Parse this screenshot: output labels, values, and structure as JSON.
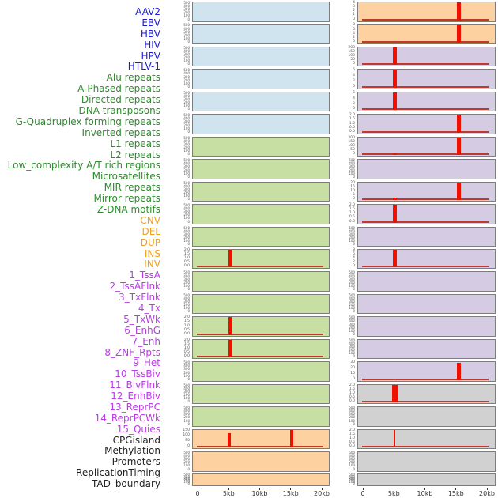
{
  "figure_title": "genomic feature tracks around region (0-20kb), two-column track grid",
  "colors": {
    "label": {
      "virus": "#1a1ad1",
      "repeat": "#2e8b2e",
      "sv": "#f0a01e",
      "chromhmm": "#b93ce6",
      "other": "#222222"
    },
    "panel_bg": {
      "virus": "#cfe4ee",
      "repeat": "#c8dfa4",
      "sv": "#fdd2a0",
      "chromhmm": "#d5cbe2",
      "other": "#d1d1d1"
    },
    "spike": "#ee1100",
    "baseline": "#c0392b",
    "panel_border": "#7d7d7d",
    "tick_text": "#555555",
    "axis_text": "#333333"
  },
  "axis": {
    "xticks": [
      "0",
      "5kb",
      "10kb",
      "15kb",
      "20kb"
    ],
    "xtick_kb": [
      0,
      5,
      10,
      15,
      20
    ]
  },
  "chart_data": {
    "type": "area",
    "layout": "44 named tracks listed down the left margin; panels drawn in two columns of 22 rows (tracks 1-22 left column top-to-bottom, tracks 23-44 right column); each panel is a 0-20kb signal strip with red peak spikes over a flat red baseline",
    "x": {
      "ticks": [
        "0",
        "5kb",
        "10kb",
        "15kb",
        "20kb"
      ],
      "range_kb": [
        0,
        20
      ]
    },
    "tracks": [
      {
        "name": "AAV2",
        "group": "virus",
        "yticks": [
          "500",
          "400",
          "300",
          "200",
          "100",
          "0"
        ],
        "peaks": [],
        "baseline": false
      },
      {
        "name": "EBV",
        "group": "virus",
        "yticks": [
          "500",
          "400",
          "300",
          "200",
          "100",
          "0"
        ],
        "peaks": [],
        "baseline": false
      },
      {
        "name": "HBV",
        "group": "virus",
        "yticks": [
          "500",
          "400",
          "300",
          "200",
          "100",
          "0"
        ],
        "peaks": [],
        "baseline": false
      },
      {
        "name": "HIV",
        "group": "virus",
        "yticks": [
          "500",
          "400",
          "300",
          "200",
          "100",
          "0"
        ],
        "peaks": [],
        "baseline": false
      },
      {
        "name": "HPV",
        "group": "virus",
        "yticks": [
          "500",
          "400",
          "300",
          "200",
          "100",
          "0"
        ],
        "peaks": [],
        "baseline": false
      },
      {
        "name": "HTLV-1",
        "group": "virus",
        "yticks": [
          "500",
          "400",
          "300",
          "200",
          "100",
          "0"
        ],
        "peaks": [],
        "baseline": false
      },
      {
        "name": "Alu repeats",
        "group": "repeat",
        "yticks": [
          "500",
          "400",
          "300",
          "200",
          "100",
          "0"
        ],
        "peaks": [],
        "baseline": false
      },
      {
        "name": "A-Phased repeats",
        "group": "repeat",
        "yticks": [
          "500",
          "400",
          "300",
          "200",
          "100",
          "0"
        ],
        "peaks": [],
        "baseline": false
      },
      {
        "name": "Directed repeats",
        "group": "repeat",
        "yticks": [
          "500",
          "400",
          "300",
          "200",
          "100",
          "0"
        ],
        "peaks": [],
        "baseline": false
      },
      {
        "name": "DNA transposons",
        "group": "repeat",
        "yticks": [
          "500",
          "400",
          "300",
          "200",
          "100",
          "0"
        ],
        "peaks": [],
        "baseline": false
      },
      {
        "name": "G-Quadruplex forming repeats",
        "group": "repeat",
        "yticks": [
          "500",
          "400",
          "300",
          "200",
          "100",
          "0"
        ],
        "peaks": [],
        "baseline": false
      },
      {
        "name": "Inverted repeats",
        "group": "repeat",
        "yticks": [
          "2.0",
          "1.5",
          "1.0",
          "0.5",
          "0.0"
        ],
        "peaks": [
          {
            "kb": 5.1,
            "h": 1,
            "w": 4
          }
        ],
        "baseline": true
      },
      {
        "name": "L1 repeats",
        "group": "repeat",
        "yticks": [
          "500",
          "400",
          "300",
          "200",
          "100",
          "0"
        ],
        "peaks": [],
        "baseline": false
      },
      {
        "name": "L2 repeats",
        "group": "repeat",
        "yticks": [
          "500",
          "400",
          "300",
          "200",
          "100",
          "0"
        ],
        "peaks": [],
        "baseline": false
      },
      {
        "name": "Low_complexity A/T rich regions",
        "group": "repeat",
        "yticks": [
          "2.0",
          "1.5",
          "1.0",
          "0.5",
          "0.0"
        ],
        "peaks": [
          {
            "kb": 5.1,
            "h": 1,
            "w": 4
          }
        ],
        "baseline": true
      },
      {
        "name": "Microsatellites",
        "group": "repeat",
        "yticks": [
          "2.0",
          "1.5",
          "1.0",
          "0.5",
          "0.0"
        ],
        "peaks": [
          {
            "kb": 5.1,
            "h": 1,
            "w": 4
          }
        ],
        "baseline": true
      },
      {
        "name": "MIR repeats",
        "group": "repeat",
        "yticks": [
          "500",
          "400",
          "300",
          "200",
          "100",
          "0"
        ],
        "peaks": [],
        "baseline": false
      },
      {
        "name": "Mirror repeats",
        "group": "repeat",
        "yticks": [
          "500",
          "400",
          "300",
          "200",
          "100",
          "0"
        ],
        "peaks": [],
        "baseline": false
      },
      {
        "name": "Z-DNA motifs",
        "group": "repeat",
        "yticks": [
          "500",
          "400",
          "300",
          "200",
          "100",
          "0"
        ],
        "peaks": [],
        "baseline": false
      },
      {
        "name": "CNV",
        "group": "sv",
        "yticks": [
          "150",
          "100",
          "50",
          "0"
        ],
        "peaks": [
          {
            "kb": 5.0,
            "h": 0.78,
            "w": 4
          },
          {
            "kb": 15.0,
            "h": 1,
            "w": 4
          }
        ],
        "baseline": true
      },
      {
        "name": "DEL",
        "group": "sv",
        "yticks": [
          "500",
          "400",
          "300",
          "200",
          "100",
          "0"
        ],
        "peaks": [],
        "baseline": false
      },
      {
        "name": "DUP",
        "group": "sv",
        "yticks": [
          "500",
          "400",
          "300",
          "200",
          "100",
          "0"
        ],
        "peaks": [],
        "baseline": false
      },
      {
        "name": "INS",
        "group": "sv",
        "yticks": [
          "4",
          "3",
          "2",
          "1",
          "0"
        ],
        "peaks": [
          {
            "kb": 15.3,
            "h": 1,
            "w": 5
          }
        ],
        "baseline": true
      },
      {
        "name": "INV",
        "group": "sv",
        "yticks": [
          "8",
          "6",
          "4",
          "2",
          "0"
        ],
        "peaks": [
          {
            "kb": 15.3,
            "h": 1,
            "w": 5
          }
        ],
        "baseline": true
      },
      {
        "name": "1_TssA",
        "group": "chromhmm",
        "yticks": [
          "200",
          "150",
          "100",
          "50",
          "0"
        ],
        "peaks": [
          {
            "kb": 5.0,
            "h": 1,
            "w": 5
          }
        ],
        "baseline": true
      },
      {
        "name": "2_TssAFlnk",
        "group": "chromhmm",
        "yticks": [
          "6",
          "4",
          "2",
          "0"
        ],
        "peaks": [
          {
            "kb": 5.0,
            "h": 1,
            "w": 5
          }
        ],
        "baseline": true
      },
      {
        "name": "3_TxFlnk",
        "group": "chromhmm",
        "yticks": [
          "6",
          "4",
          "2",
          "0"
        ],
        "peaks": [
          {
            "kb": 5.0,
            "h": 1,
            "w": 5
          }
        ],
        "baseline": true
      },
      {
        "name": "4_Tx",
        "group": "chromhmm",
        "yticks": [
          "2.0",
          "1.5",
          "1.0",
          "0.5",
          "0.0"
        ],
        "peaks": [
          {
            "kb": 15.3,
            "h": 1,
            "w": 5
          }
        ],
        "baseline": true
      },
      {
        "name": "5_TxWk",
        "group": "chromhmm",
        "yticks": [
          "200",
          "150",
          "100",
          "50",
          "0"
        ],
        "peaks": [
          {
            "kb": 15.3,
            "h": 1,
            "w": 5
          },
          {
            "kb": 5.0,
            "h": 0.12,
            "w": 5
          }
        ],
        "baseline": true
      },
      {
        "name": "6_EnhG",
        "group": "chromhmm",
        "yticks": [
          "500",
          "400",
          "300",
          "200",
          "100",
          "0"
        ],
        "peaks": [],
        "baseline": false
      },
      {
        "name": "7_Enh",
        "group": "chromhmm",
        "yticks": [
          "20",
          "15",
          "10",
          "5",
          "0"
        ],
        "peaks": [
          {
            "kb": 15.3,
            "h": 1,
            "w": 5
          },
          {
            "kb": 5.0,
            "h": 0.16,
            "w": 5
          }
        ],
        "baseline": true
      },
      {
        "name": "8_ZNF_Rpts",
        "group": "chromhmm",
        "yticks": [
          "2.0",
          "1.5",
          "1.0",
          "0.5",
          "0.0"
        ],
        "peaks": [
          {
            "kb": 5.0,
            "h": 1,
            "w": 5
          }
        ],
        "baseline": true
      },
      {
        "name": "9_Het",
        "group": "chromhmm",
        "yticks": [
          "500",
          "400",
          "300",
          "200",
          "100",
          "0"
        ],
        "peaks": [],
        "baseline": false
      },
      {
        "name": "10_TssBiv",
        "group": "chromhmm",
        "yticks": [
          "8",
          "6",
          "4",
          "2",
          "0"
        ],
        "peaks": [
          {
            "kb": 5.0,
            "h": 1,
            "w": 5
          }
        ],
        "baseline": true
      },
      {
        "name": "11_BivFlnk",
        "group": "chromhmm",
        "yticks": [
          "500",
          "400",
          "300",
          "200",
          "100",
          "0"
        ],
        "peaks": [],
        "baseline": false
      },
      {
        "name": "12_EnhBiv",
        "group": "chromhmm",
        "yticks": [
          "500",
          "400",
          "300",
          "200",
          "100",
          "0"
        ],
        "peaks": [],
        "baseline": false
      },
      {
        "name": "13_ReprPC",
        "group": "chromhmm",
        "yticks": [
          "500",
          "400",
          "300",
          "200",
          "100",
          "0"
        ],
        "peaks": [],
        "baseline": false
      },
      {
        "name": "14_ReprPCWk",
        "group": "chromhmm",
        "yticks": [
          "500",
          "400",
          "300",
          "200",
          "100",
          "0"
        ],
        "peaks": [],
        "baseline": false
      },
      {
        "name": "15_Quies",
        "group": "chromhmm",
        "yticks": [
          "30",
          "20",
          "10",
          "0"
        ],
        "peaks": [
          {
            "kb": 15.3,
            "h": 0.95,
            "w": 5
          }
        ],
        "baseline": true
      },
      {
        "name": "CPGisland",
        "group": "other",
        "yticks": [
          "2.0",
          "1.5",
          "1.0",
          "0.5",
          "0.0"
        ],
        "peaks": [
          {
            "kb": 5.0,
            "h": 1,
            "w": 7
          }
        ],
        "baseline": true
      },
      {
        "name": "Methylation",
        "group": "other",
        "yticks": [
          "500",
          "400",
          "300",
          "200",
          "100",
          "0"
        ],
        "peaks": [],
        "baseline": false
      },
      {
        "name": "Promoters",
        "group": "other",
        "yticks": [
          "2.0",
          "1.5",
          "1.0",
          "0.5",
          "0.0"
        ],
        "peaks": [
          {
            "kb": 5.0,
            "h": 1,
            "w": 2
          }
        ],
        "baseline": true
      },
      {
        "name": "ReplicationTiming",
        "group": "other",
        "yticks": [
          "500",
          "400",
          "300",
          "200",
          "100",
          "0"
        ],
        "peaks": [],
        "baseline": false
      },
      {
        "name": "TAD_boundary",
        "group": "other",
        "yticks": [
          "500",
          "400",
          "300",
          "200",
          "100",
          "0"
        ],
        "peaks": [],
        "baseline": false
      }
    ]
  }
}
